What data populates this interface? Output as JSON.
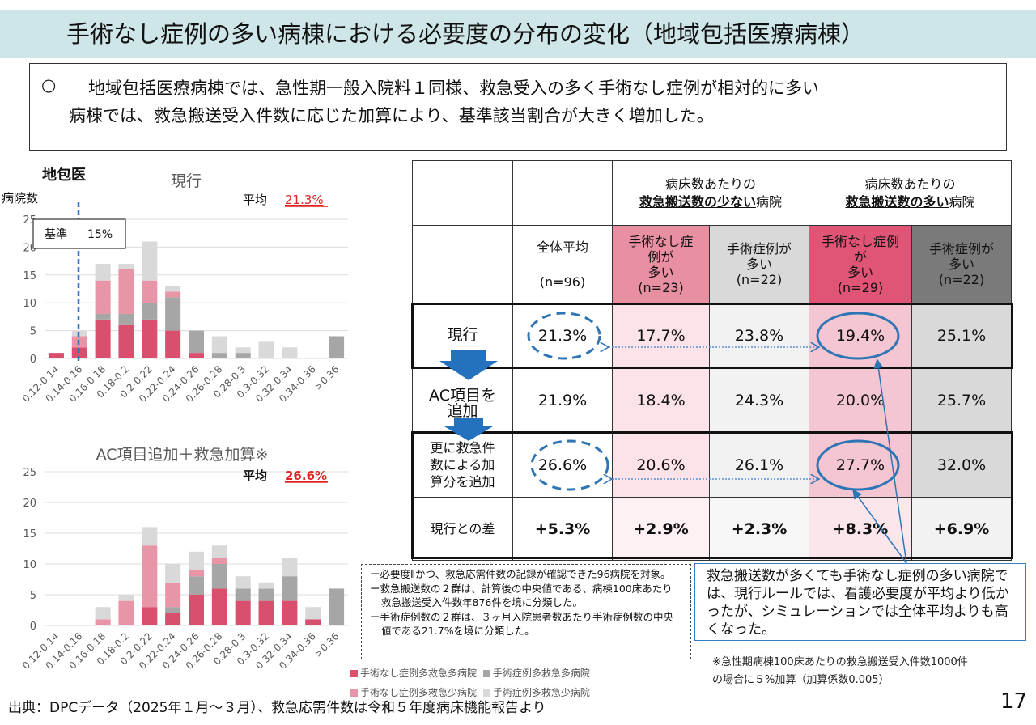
{
  "title": "手術なし症例の多い病棟における必要度の分布の変化（地域包括医療病棟）",
  "summary": {
    "bullet": "○",
    "line1": "地域包括医療病棟では、急性期一般入院料１同様、救急受入の多く手術なし症例が相対的に多い",
    "line2": "病棟では、救急搬送受入件数に応じた加算により、基準該当割合が大きく増加した。"
  },
  "colors": {
    "nosurg_many_ems": "#d94f6e",
    "surg_many_ems": "#a6a6a6",
    "nosurg_few_ems": "#e995a8",
    "surg_few_ems": "#d9d9d9",
    "accent_red": "#e02424",
    "accent_blue": "#2e75b6"
  },
  "chart_data": [
    {
      "type": "bar",
      "stacked": true,
      "section_label": "地包医",
      "title": "現行",
      "ylabel": "病院数",
      "ylim": [
        0,
        25
      ],
      "yticks": [
        0,
        5,
        10,
        15,
        20,
        25
      ],
      "grid": true,
      "average_label": "平均",
      "average_value": "21.3%",
      "threshold_label": "基準",
      "threshold_value": "15%",
      "threshold_position": "0.15",
      "categories": [
        "0.12-0.14",
        "0.14-0.16",
        "0.16-0.18",
        "0.18-0.2",
        "0.2-0.22",
        "0.22-0.24",
        "0.24-0.26",
        "0.26-0.28",
        "0.28-0.3",
        "0.3-0.32",
        "0.32-0.34",
        "0.34-0.36",
        ">0.36"
      ],
      "series": [
        {
          "name": "手術なし症例多救急多病院",
          "values": [
            1,
            2,
            7,
            6,
            7,
            5,
            1,
            0,
            0,
            0,
            0,
            0,
            0
          ]
        },
        {
          "name": "手術症例多救急多病院",
          "values": [
            0,
            0,
            1,
            2,
            3,
            6,
            4,
            1,
            1,
            0,
            0,
            0,
            4
          ]
        },
        {
          "name": "手術なし症例多救急少病院",
          "values": [
            0,
            2,
            6,
            8,
            4,
            1,
            0,
            0,
            0,
            0,
            0,
            0,
            0
          ]
        },
        {
          "name": "手術症例多救急少病院",
          "values": [
            0,
            1,
            3,
            1,
            7,
            1,
            0,
            3,
            1,
            3,
            2,
            0,
            0
          ]
        }
      ]
    },
    {
      "type": "bar",
      "stacked": true,
      "title": "AC項目追加＋救急加算※",
      "ylim": [
        0,
        25
      ],
      "yticks": [
        0,
        5,
        10,
        15,
        20,
        25
      ],
      "grid": true,
      "average_label": "平均",
      "average_value": "26.6%",
      "categories": [
        "0.12-0.14",
        "0.14-0.16",
        "0.16-0.18",
        "0.18-0.2",
        "0.2-0.22",
        "0.22-0.24",
        "0.24-0.26",
        "0.26-0.28",
        "0.28-0.3",
        "0.3-0.32",
        "0.32-0.34",
        "0.34-0.36",
        ">0.36"
      ],
      "series": [
        {
          "name": "手術なし症例多救急多病院",
          "values": [
            0,
            0,
            0,
            0,
            3,
            2,
            5,
            6,
            4,
            4,
            4,
            1,
            0
          ]
        },
        {
          "name": "手術症例多救急多病院",
          "values": [
            0,
            0,
            0,
            0,
            0,
            1,
            3,
            4,
            2,
            2,
            4,
            0,
            6
          ]
        },
        {
          "name": "手術なし症例多救急少病院",
          "values": [
            0,
            0,
            1,
            4,
            10,
            4,
            1,
            1,
            0,
            0,
            0,
            0,
            0
          ]
        },
        {
          "name": "手術症例多救急少病院",
          "values": [
            0,
            0,
            2,
            1,
            3,
            3,
            3,
            2,
            2,
            1,
            3,
            2,
            0
          ]
        }
      ]
    },
    {
      "type": "table",
      "group_headers": [
        {
          "line1": "病床数あたりの",
          "bold": "救急搬送数の少ない",
          "suffix": "病院"
        },
        {
          "line1": "病床数あたりの",
          "bold": "救急搬送数の多い",
          "suffix": "病院"
        }
      ],
      "columns": [
        {
          "label": "全体平均",
          "n": "(n=96)"
        },
        {
          "label_lines": [
            "手術なし症",
            "例が",
            "多い"
          ],
          "n": "(n=23)"
        },
        {
          "label_lines": [
            "手術症例が",
            "多い"
          ],
          "n": "(n=22)"
        },
        {
          "label_lines": [
            "手術なし症例",
            "が",
            "多い"
          ],
          "n": "(n=29)"
        },
        {
          "label_lines": [
            "手術症例が",
            "多い"
          ],
          "n": "(n=22)"
        }
      ],
      "rows": [
        {
          "label_lines": [
            "現行"
          ],
          "values": [
            "21.3%",
            "17.7%",
            "23.8%",
            "19.4%",
            "25.1%"
          ]
        },
        {
          "label_lines": [
            "AC項目を",
            "追加"
          ],
          "values": [
            "21.9%",
            "18.4%",
            "24.3%",
            "20.0%",
            "25.7%"
          ]
        },
        {
          "label_lines": [
            "更に救急件",
            "数による加",
            "算分を追加"
          ],
          "values": [
            "26.6%",
            "20.6%",
            "26.1%",
            "27.7%",
            "32.0%"
          ]
        },
        {
          "label_lines": [
            "現行との差"
          ],
          "values": [
            "+5.3%",
            "+2.9%",
            "+2.3%",
            "+8.3%",
            "+6.9%"
          ]
        }
      ]
    }
  ],
  "notes": [
    "ー必要度Ⅱかつ、救急応需件数の記録が確認できた96病院を対象。",
    "ー救急搬送数の２群は、計算後の中央値である、病棟100床あたり救急搬送受入件数年876件を境に分類した。",
    "ー手術症例数の２群は、３ヶ月入院患者数あたり手術症例数の中央値である21.7%を境に分類した。"
  ],
  "callout": "救急搬送数が多くても手術なし症例の多い病院では、現行ルールでは、看護必要度が平均より低かったが、シミュレーションでは全体平均よりも高くなった。",
  "footnote_lines": [
    "※急性期病棟100床あたりの救急搬送受入件数1000件",
    "の場合に５%加算（加算係数0.005）"
  ],
  "legend": [
    "手術なし症例多救急多病院",
    "手術症例多救急多病院",
    "手術なし症例多救急少病院",
    "手術症例多救急少病院"
  ],
  "source": "出典：DPCデータ（2025年１月～３月）、救急応需件数は令和５年度病床機能報告より",
  "page_number": "17"
}
